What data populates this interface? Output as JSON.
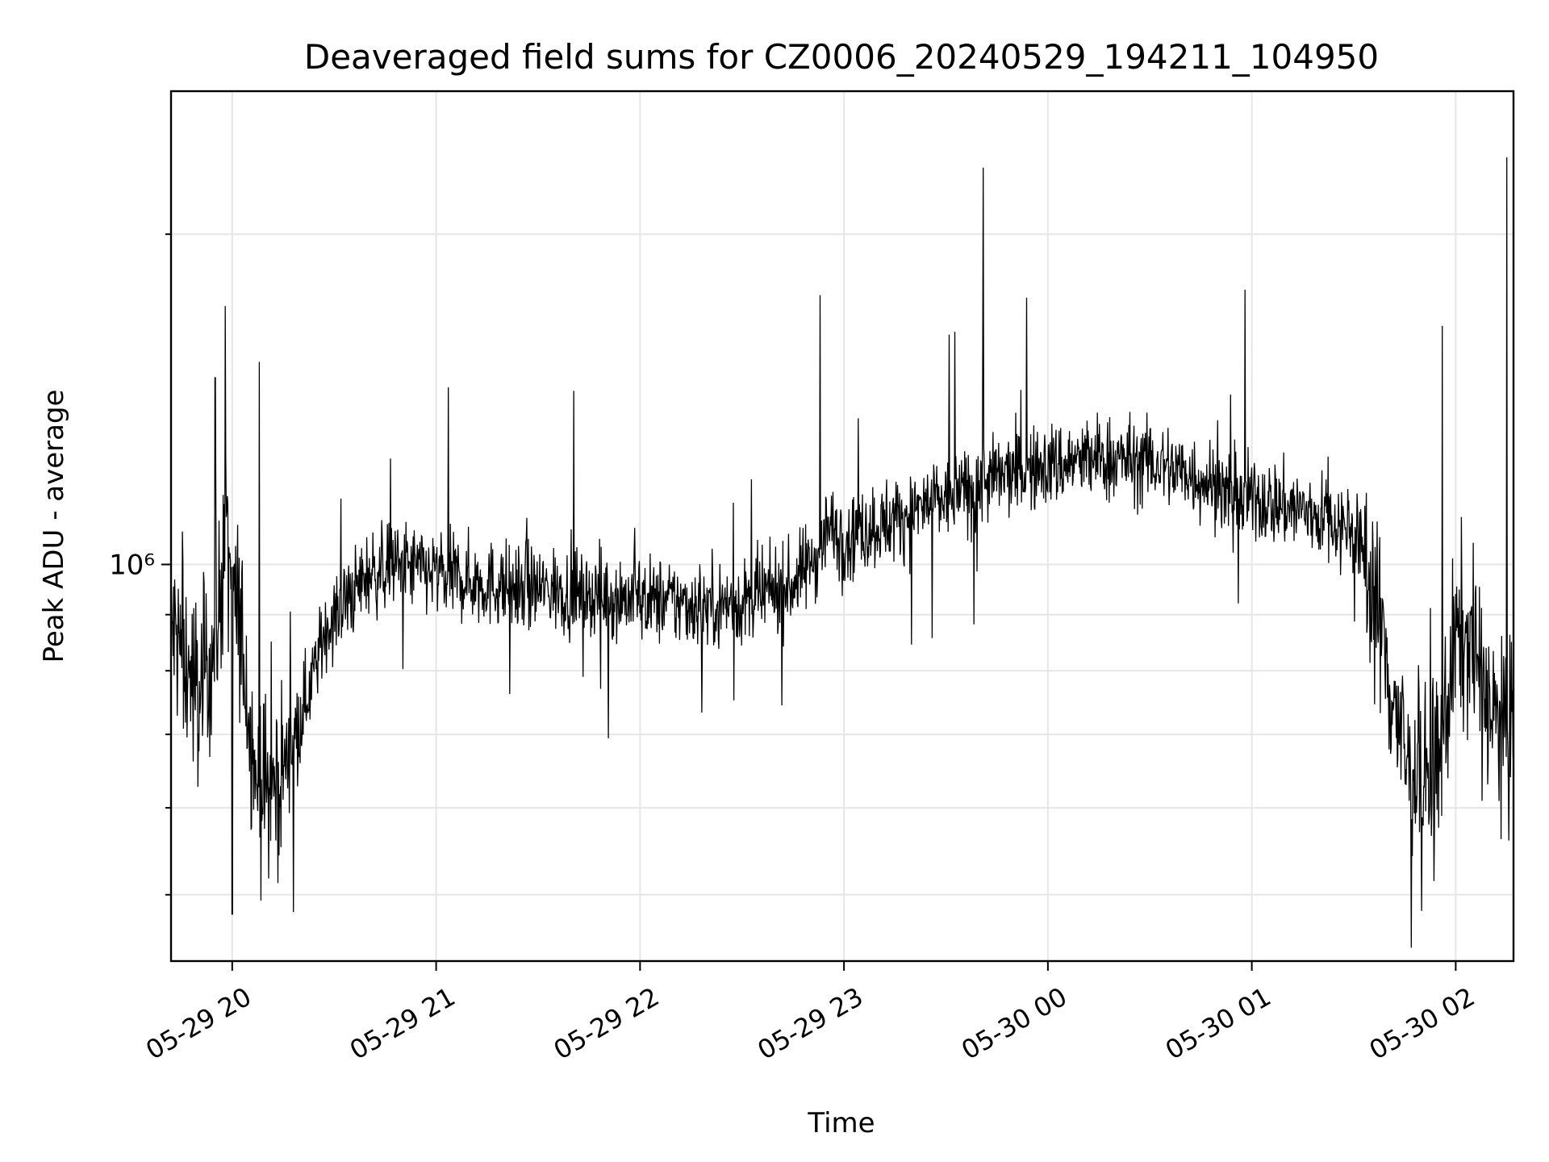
{
  "chart_data": {
    "type": "line",
    "title": "Deaveraged field sums for CZ0006_20240529_194211_104950",
    "xlabel": "Time",
    "ylabel": "Peak ADU - average",
    "y_scale": "log",
    "ylim": [
      435000,
      2700000
    ],
    "xlim": [
      "2024-05-29T19:42:00",
      "2024-05-30T02:17:00"
    ],
    "grid": true,
    "legend": "none",
    "line_color": "#000000",
    "x_ticks": [
      "2024-05-29T20:00",
      "2024-05-29T21:00",
      "2024-05-29T22:00",
      "2024-05-29T23:00",
      "2024-05-30T00:00",
      "2024-05-30T01:00",
      "2024-05-30T02:00"
    ],
    "x_tick_labels": [
      "05-29 20",
      "05-29 21",
      "05-29 22",
      "05-29 23",
      "05-30 00",
      "05-30 01",
      "05-30 02"
    ],
    "y_major_ticks": [
      1000000
    ],
    "y_major_tick_labels": [
      "10⁶"
    ],
    "y_minor_ticks": [
      500000,
      600000,
      700000,
      800000,
      900000,
      2000000
    ],
    "series": [
      {
        "times": [
          "2024-05-29T19:42",
          "2024-05-29T19:50",
          "2024-05-29T19:55",
          "2024-05-29T19:58",
          "2024-05-29T20:03",
          "2024-05-29T20:07",
          "2024-05-29T20:12",
          "2024-05-29T20:17",
          "2024-05-29T20:22",
          "2024-05-29T20:28",
          "2024-05-29T20:40",
          "2024-05-29T20:50",
          "2024-05-29T21:00",
          "2024-05-29T21:15",
          "2024-05-29T21:30",
          "2024-05-29T21:45",
          "2024-05-29T22:00",
          "2024-05-29T22:15",
          "2024-05-29T22:30",
          "2024-05-29T22:45",
          "2024-05-29T22:52",
          "2024-05-29T22:55",
          "2024-05-29T23:00",
          "2024-05-29T23:15",
          "2024-05-29T23:30",
          "2024-05-29T23:40",
          "2024-05-29T23:45",
          "2024-05-30T00:00",
          "2024-05-30T00:15",
          "2024-05-30T00:30",
          "2024-05-30T00:45",
          "2024-05-30T00:57",
          "2024-05-30T01:00",
          "2024-05-30T01:15",
          "2024-05-30T01:30",
          "2024-05-30T01:35",
          "2024-05-30T01:40",
          "2024-05-30T01:45",
          "2024-05-30T01:50",
          "2024-05-30T01:55",
          "2024-05-30T02:00",
          "2024-05-30T02:05",
          "2024-05-30T02:10",
          "2024-05-30T02:15",
          "2024-05-30T02:17"
        ],
        "values": [
          880000,
          760000,
          850000,
          1050000,
          850000,
          640000,
          620000,
          680000,
          760000,
          880000,
          980000,
          1000000,
          980000,
          960000,
          950000,
          940000,
          930000,
          920000,
          920000,
          960000,
          1020000,
          1080000,
          1060000,
          1100000,
          1150000,
          1180000,
          1200000,
          1230000,
          1250000,
          1240000,
          1200000,
          1140000,
          1150000,
          1120000,
          1080000,
          980000,
          800000,
          670000,
          630000,
          650000,
          860000,
          850000,
          740000,
          680000,
          740000
        ]
      }
    ],
    "spikes": {
      "times": [
        "2024-05-29T19:55",
        "2024-05-29T19:58",
        "2024-05-29T20:00",
        "2024-05-29T20:08",
        "2024-05-29T22:53",
        "2024-05-29T23:31",
        "2024-05-29T23:41",
        "2024-05-30T00:58",
        "2024-05-30T01:56",
        "2024-05-30T02:15"
      ],
      "values": [
        1480000,
        1720000,
        480000,
        1530000,
        1760000,
        1620000,
        2300000,
        1780000,
        1650000,
        2350000
      ]
    }
  }
}
